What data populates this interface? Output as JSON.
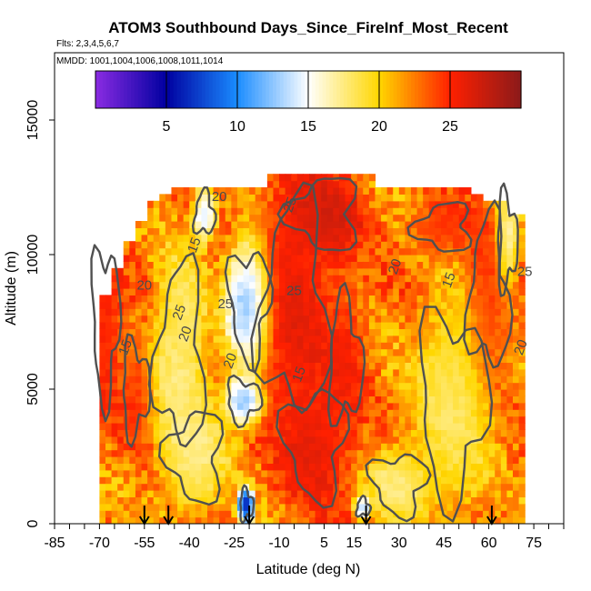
{
  "chart_data": {
    "type": "heatmap",
    "title": "ATOM3 Southbound Days_Since_FireInf_Most_Recent",
    "subtitle_flights": "Flts: 2,3,4,5,6,7",
    "subtitle_dates": "MMDD: 1001,1004,1006,1008,1011,1014",
    "xlabel": "Latitude (deg N)",
    "ylabel": "Altitude (m)",
    "xlim": [
      -85,
      85
    ],
    "ylim": [
      0,
      17500
    ],
    "x_ticks": [
      -85,
      -70,
      -55,
      -40,
      -25,
      -10,
      5,
      15,
      30,
      45,
      60,
      75
    ],
    "x_minor_step": 5,
    "y_ticks": [
      0,
      5000,
      10000,
      15000
    ],
    "colorbar": {
      "range": [
        0,
        30
      ],
      "ticks": [
        5,
        10,
        15,
        20,
        25
      ],
      "colors": [
        "#8a2be2",
        "#0000a0",
        "#1a8cff",
        "#ffffff",
        "#ffd700",
        "#ff2000",
        "#8b1a1a"
      ]
    },
    "contour_labels": [
      "20",
      "15",
      "25",
      "20",
      "15",
      "20",
      "25",
      "20",
      "15",
      "25",
      "20",
      "15",
      "25",
      "20",
      "25"
    ],
    "flight_markers_lat": [
      -55,
      -47,
      -20,
      19,
      61
    ],
    "ceiling_by_lat": [
      [
        -68,
        8500
      ],
      [
        -64,
        9500
      ],
      [
        -60,
        10500
      ],
      [
        -56,
        11200
      ],
      [
        -52,
        11800
      ],
      [
        -48,
        12100
      ],
      [
        -44,
        12500
      ],
      [
        -40,
        12500
      ],
      [
        -36,
        12500
      ],
      [
        -32,
        12500
      ],
      [
        -28,
        12500
      ],
      [
        -24,
        12500
      ],
      [
        -20,
        12500
      ],
      [
        -16,
        12500
      ],
      [
        -12,
        13000
      ],
      [
        -8,
        13000
      ],
      [
        -4,
        13000
      ],
      [
        0,
        13000
      ],
      [
        4,
        13000
      ],
      [
        8,
        13000
      ],
      [
        12,
        13000
      ],
      [
        16,
        13000
      ],
      [
        20,
        13000
      ],
      [
        24,
        12500
      ],
      [
        28,
        12500
      ],
      [
        32,
        12500
      ],
      [
        36,
        12500
      ],
      [
        40,
        12500
      ],
      [
        44,
        12500
      ],
      [
        48,
        12500
      ],
      [
        52,
        12500
      ],
      [
        56,
        12200
      ],
      [
        60,
        12000
      ],
      [
        64,
        11800
      ],
      [
        68,
        11500
      ]
    ],
    "low_value_regions": [
      {
        "lat": -20,
        "alt": 8200,
        "days": 9,
        "spread_lat": 6,
        "spread_alt": 1800
      },
      {
        "lat": -22,
        "alt": 4600,
        "days": 9,
        "spread_lat": 5,
        "spread_alt": 700
      },
      {
        "lat": -21,
        "alt": 700,
        "days": 2,
        "spread_lat": 2,
        "spread_alt": 500
      },
      {
        "lat": -35,
        "alt": 11500,
        "days": 11,
        "spread_lat": 3,
        "spread_alt": 700
      },
      {
        "lat": -43,
        "alt": 6200,
        "days": 16,
        "spread_lat": 7,
        "spread_alt": 3000
      },
      {
        "lat": -38,
        "alt": 2500,
        "days": 16,
        "spread_lat": 8,
        "spread_alt": 1500
      },
      {
        "lat": 30,
        "alt": 1500,
        "days": 16,
        "spread_lat": 8,
        "spread_alt": 1000
      },
      {
        "lat": 48,
        "alt": 4500,
        "days": 17,
        "spread_lat": 10,
        "spread_alt": 3000
      },
      {
        "lat": 66,
        "alt": 10500,
        "days": 14,
        "spread_lat": 3,
        "spread_alt": 1500
      },
      {
        "lat": 18,
        "alt": 600,
        "days": 10,
        "spread_lat": 2,
        "spread_alt": 300
      }
    ],
    "high_value_regions": [
      {
        "lat": -5,
        "alt": 8000,
        "days": 27,
        "spread_lat": 10,
        "spread_alt": 3500
      },
      {
        "lat": 5,
        "alt": 11500,
        "days": 28,
        "spread_lat": 10,
        "spread_alt": 1200
      },
      {
        "lat": 2,
        "alt": 3000,
        "days": 27,
        "spread_lat": 9,
        "spread_alt": 1800
      },
      {
        "lat": -68,
        "alt": 7500,
        "days": 26,
        "spread_lat": 4,
        "spread_alt": 2500
      },
      {
        "lat": -58,
        "alt": 5000,
        "days": 25,
        "spread_lat": 4,
        "spread_alt": 1500
      },
      {
        "lat": 12,
        "alt": 6000,
        "days": 26,
        "spread_lat": 5,
        "spread_alt": 2000
      },
      {
        "lat": 60,
        "alt": 8500,
        "days": 25,
        "spread_lat": 6,
        "spread_alt": 2500
      },
      {
        "lat": 45,
        "alt": 11000,
        "days": 25,
        "spread_lat": 8,
        "spread_alt": 800
      }
    ]
  }
}
